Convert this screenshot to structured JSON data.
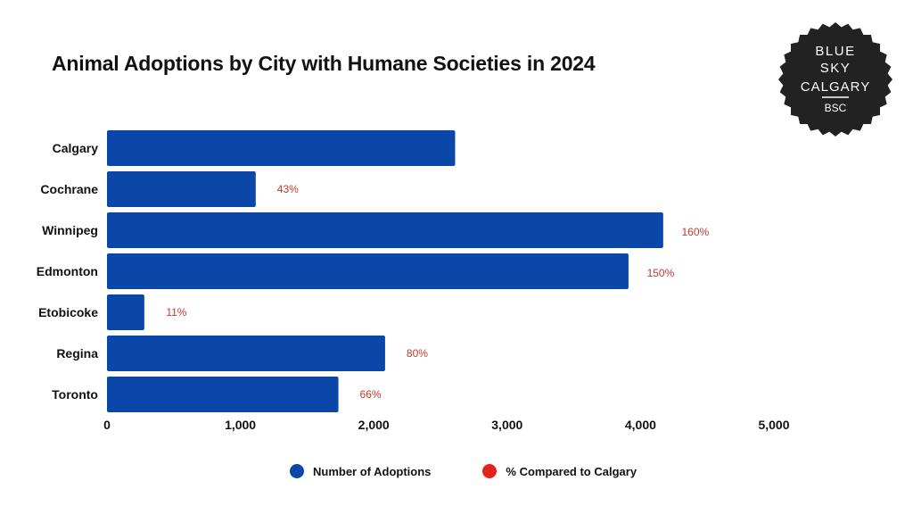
{
  "colors": {
    "bar": "#0b47a8",
    "pct": "#c0392b",
    "legend_pct_dot": "#e32219",
    "badge_bg": "#222222",
    "badge_fg": "#ffffff"
  },
  "logo": {
    "line1": "BLUE",
    "line2": "SKY",
    "line3": "CALGARY",
    "line4": "BSC"
  },
  "chart_data": {
    "type": "bar",
    "orientation": "horizontal",
    "title": "Animal Adoptions by City with Humane Societies in 2024",
    "categories": [
      "Calgary",
      "Cochrane",
      "Winnipeg",
      "Edmonton",
      "Etobicoke",
      "Regina",
      "Toronto"
    ],
    "series": [
      {
        "name": "Number of Adoptions",
        "values": [
          2610,
          1115,
          4170,
          3910,
          280,
          2085,
          1735
        ]
      },
      {
        "name": "% Compared to Calgary",
        "values": [
          null,
          43,
          160,
          150,
          11,
          80,
          66
        ]
      }
    ],
    "percent_labels": [
      "",
      "43%",
      "160%",
      "150%",
      "11%",
      "80%",
      "66%"
    ],
    "xlim": [
      0,
      5000
    ],
    "xticks": [
      0,
      1000,
      2000,
      3000,
      4000,
      5000
    ],
    "xtick_labels": [
      "0",
      "1,000",
      "2,000",
      "3,000",
      "4,000",
      "5,000"
    ],
    "grid": false,
    "legend_position": "bottom"
  }
}
